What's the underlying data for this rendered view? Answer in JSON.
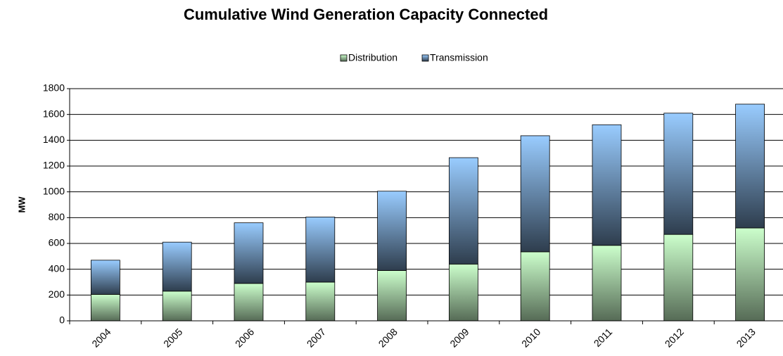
{
  "chart_data": {
    "type": "stacked_bar",
    "title": "Cumulative Wind Generation Capacity Connected",
    "y_label": "MW",
    "categories": [
      "2004",
      "2005",
      "2006",
      "2007",
      "2008",
      "2009",
      "2010",
      "2011",
      "2012",
      "2013"
    ],
    "series": [
      {
        "name": "Distribution",
        "color": "#ccffcc",
        "values": [
          205,
          230,
          290,
          300,
          390,
          440,
          535,
          585,
          670,
          720
        ]
      },
      {
        "name": "Transmission",
        "color": "#99ccff",
        "values": [
          265,
          380,
          470,
          505,
          615,
          825,
          900,
          935,
          940,
          960
        ]
      }
    ],
    "ylim": [
      0,
      1800
    ],
    "yticks": [
      0,
      200,
      400,
      600,
      800,
      1000,
      1200,
      1400,
      1600,
      1800
    ],
    "grid": true,
    "legend": "top"
  }
}
